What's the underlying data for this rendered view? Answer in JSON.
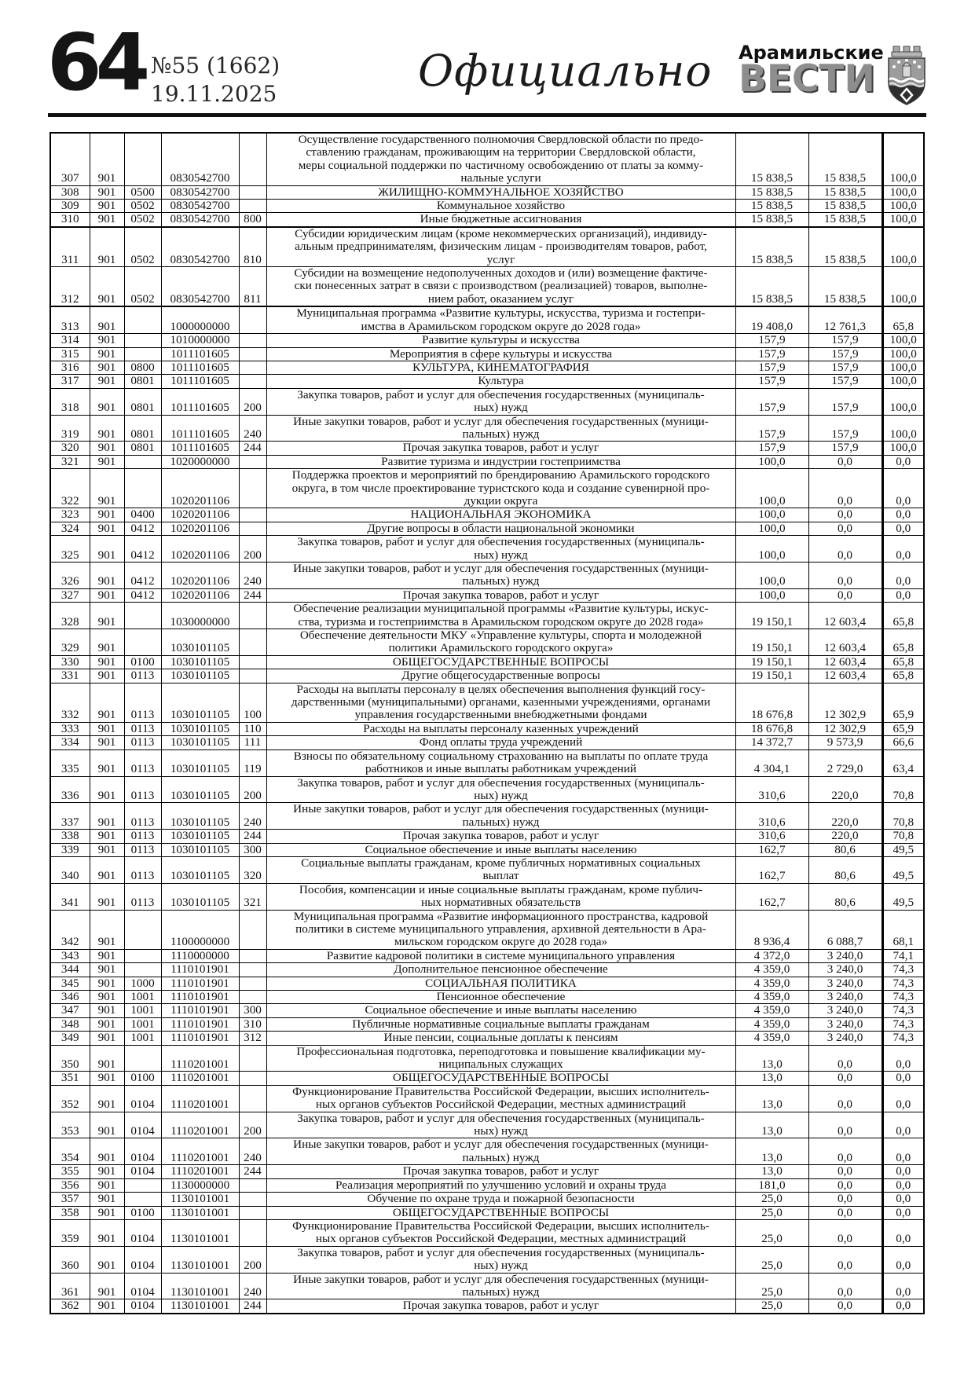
{
  "header": {
    "page_number": "64",
    "issue": "№55 (1662)",
    "date": "19.11.2025",
    "section_title": "Официально",
    "brand_top": "Арамильские",
    "brand_bottom": "ВЕСТИ",
    "crest_icon": "aramil-coat-of-arms-icon"
  },
  "table": {
    "columns": [
      "row_number",
      "grbs_code",
      "section_code",
      "target_article",
      "expense_type",
      "name",
      "approved",
      "executed",
      "percent"
    ],
    "thick_after": [
      "310",
      "312"
    ],
    "rows": [
      [
        "307",
        "901",
        "",
        "0830542700",
        "",
        "Осуществление государственного полномочия Свердловской области по предо-\nставлению гражданам, проживающим на территории Свердловской области,\nмеры социальной поддержки по частичному освобождению от платы за комму-\nнальные услуги",
        "15 838,5",
        "15 838,5",
        "100,0"
      ],
      [
        "308",
        "901",
        "0500",
        "0830542700",
        "",
        "ЖИЛИЩНО-КОММУНАЛЬНОЕ ХОЗЯЙСТВО",
        "15 838,5",
        "15 838,5",
        "100,0"
      ],
      [
        "309",
        "901",
        "0502",
        "0830542700",
        "",
        "Коммунальное хозяйство",
        "15 838,5",
        "15 838,5",
        "100,0"
      ],
      [
        "310",
        "901",
        "0502",
        "0830542700",
        "800",
        "Иные бюджетные ассигнования",
        "15 838,5",
        "15 838,5",
        "100,0"
      ],
      [
        "311",
        "901",
        "0502",
        "0830542700",
        "810",
        "Субсидии юридическим лицам (кроме некоммерческих организаций), индивиду-\nальным предпринимателям, физическим лицам - производителям товаров, работ,\nуслуг",
        "15 838,5",
        "15 838,5",
        "100,0"
      ],
      [
        "312",
        "901",
        "0502",
        "0830542700",
        "811",
        "Субсидии на возмещение недополученных доходов и (или) возмещение фактиче-\nски понесенных затрат в связи с производством (реализацией) товаров, выполне-\nнием работ, оказанием услуг",
        "15 838,5",
        "15 838,5",
        "100,0"
      ],
      [
        "313",
        "901",
        "",
        "1000000000",
        "",
        "Муниципальная программа «Развитие культуры, искусства, туризма и гостепри-\nимства в Арамильском городском округе до 2028 года»",
        "19 408,0",
        "12 761,3",
        "65,8"
      ],
      [
        "314",
        "901",
        "",
        "1010000000",
        "",
        "Развитие культуры и искусства",
        "157,9",
        "157,9",
        "100,0"
      ],
      [
        "315",
        "901",
        "",
        "1011101605",
        "",
        "Мероприятия в сфере культуры и искусства",
        "157,9",
        "157,9",
        "100,0"
      ],
      [
        "316",
        "901",
        "0800",
        "1011101605",
        "",
        "КУЛЬТУРА, КИНЕМАТОГРАФИЯ",
        "157,9",
        "157,9",
        "100,0"
      ],
      [
        "317",
        "901",
        "0801",
        "1011101605",
        "",
        "Культура",
        "157,9",
        "157,9",
        "100,0"
      ],
      [
        "318",
        "901",
        "0801",
        "1011101605",
        "200",
        "Закупка товаров, работ и услуг для обеспечения государственных (муниципаль-\nных) нужд",
        "157,9",
        "157,9",
        "100,0"
      ],
      [
        "319",
        "901",
        "0801",
        "1011101605",
        "240",
        "Иные закупки товаров, работ и услуг для обеспечения государственных (муници-\nпальных) нужд",
        "157,9",
        "157,9",
        "100,0"
      ],
      [
        "320",
        "901",
        "0801",
        "1011101605",
        "244",
        "Прочая закупка товаров, работ и услуг",
        "157,9",
        "157,9",
        "100,0"
      ],
      [
        "321",
        "901",
        "",
        "1020000000",
        "",
        "Развитие туризма и индустрии гостеприимства",
        "100,0",
        "0,0",
        "0,0"
      ],
      [
        "322",
        "901",
        "",
        "1020201106",
        "",
        "Поддержка проектов и мероприятий по брендированию Арамильского городского\nокруга, в том числе проектирование туристского кода и создание сувенирной про-\nдукции округа",
        "100,0",
        "0,0",
        "0,0"
      ],
      [
        "323",
        "901",
        "0400",
        "1020201106",
        "",
        "НАЦИОНАЛЬНАЯ ЭКОНОМИКА",
        "100,0",
        "0,0",
        "0,0"
      ],
      [
        "324",
        "901",
        "0412",
        "1020201106",
        "",
        "Другие вопросы в области национальной экономики",
        "100,0",
        "0,0",
        "0,0"
      ],
      [
        "325",
        "901",
        "0412",
        "1020201106",
        "200",
        "Закупка товаров, работ и услуг для обеспечения государственных (муниципаль-\nных) нужд",
        "100,0",
        "0,0",
        "0,0"
      ],
      [
        "326",
        "901",
        "0412",
        "1020201106",
        "240",
        "Иные закупки товаров, работ и услуг для обеспечения государственных (муници-\nпальных) нужд",
        "100,0",
        "0,0",
        "0,0"
      ],
      [
        "327",
        "901",
        "0412",
        "1020201106",
        "244",
        "Прочая закупка товаров, работ и услуг",
        "100,0",
        "0,0",
        "0,0"
      ],
      [
        "328",
        "901",
        "",
        "1030000000",
        "",
        "Обеспечение реализации муниципальной программы «Развитие культуры, искус-\nства, туризма и гостеприимства в Арамильском городском округе до 2028 года»",
        "19 150,1",
        "12 603,4",
        "65,8"
      ],
      [
        "329",
        "901",
        "",
        "1030101105",
        "",
        "Обеспечение деятельности МКУ «Управление культуры, спорта и молодежной\nполитики Арамильского городского округа»",
        "19 150,1",
        "12 603,4",
        "65,8"
      ],
      [
        "330",
        "901",
        "0100",
        "1030101105",
        "",
        "ОБЩЕГОСУДАРСТВЕННЫЕ ВОПРОСЫ",
        "19 150,1",
        "12 603,4",
        "65,8"
      ],
      [
        "331",
        "901",
        "0113",
        "1030101105",
        "",
        "Другие общегосударственные вопросы",
        "19 150,1",
        "12 603,4",
        "65,8"
      ],
      [
        "332",
        "901",
        "0113",
        "1030101105",
        "100",
        "Расходы на выплаты персоналу в целях обеспечения выполнения функций госу-\nдарственными (муниципальными) органами, казенными учреждениями, органами\nуправления государственными внебюджетными фондами",
        "18 676,8",
        "12 302,9",
        "65,9"
      ],
      [
        "333",
        "901",
        "0113",
        "1030101105",
        "110",
        "Расходы на выплаты персоналу казенных учреждений",
        "18 676,8",
        "12 302,9",
        "65,9"
      ],
      [
        "334",
        "901",
        "0113",
        "1030101105",
        "111",
        "Фонд оплаты труда учреждений",
        "14 372,7",
        "9 573,9",
        "66,6"
      ],
      [
        "335",
        "901",
        "0113",
        "1030101105",
        "119",
        "Взносы по обязательному социальному страхованию на выплаты по оплате труда\nработников и иные выплаты работникам учреждений",
        "4 304,1",
        "2 729,0",
        "63,4"
      ],
      [
        "336",
        "901",
        "0113",
        "1030101105",
        "200",
        "Закупка товаров, работ и услуг для обеспечения государственных (муниципаль-\nных) нужд",
        "310,6",
        "220,0",
        "70,8"
      ],
      [
        "337",
        "901",
        "0113",
        "1030101105",
        "240",
        "Иные закупки товаров, работ и услуг для обеспечения государственных (муници-\nпальных) нужд",
        "310,6",
        "220,0",
        "70,8"
      ],
      [
        "338",
        "901",
        "0113",
        "1030101105",
        "244",
        "Прочая закупка товаров, работ и услуг",
        "310,6",
        "220,0",
        "70,8"
      ],
      [
        "339",
        "901",
        "0113",
        "1030101105",
        "300",
        "Социальное обеспечение и иные выплаты населению",
        "162,7",
        "80,6",
        "49,5"
      ],
      [
        "340",
        "901",
        "0113",
        "1030101105",
        "320",
        "Социальные выплаты гражданам, кроме публичных нормативных социальных\nвыплат",
        "162,7",
        "80,6",
        "49,5"
      ],
      [
        "341",
        "901",
        "0113",
        "1030101105",
        "321",
        "Пособия, компенсации и иные социальные выплаты гражданам, кроме публич-\nных нормативных обязательств",
        "162,7",
        "80,6",
        "49,5"
      ],
      [
        "342",
        "901",
        "",
        "1100000000",
        "",
        "Муниципальная программа «Развитие информационного пространства, кадровой\nполитики в системе муниципального управления, архивной деятельности в Ара-\nмильском городском округе до 2028 года»",
        "8 936,4",
        "6 088,7",
        "68,1"
      ],
      [
        "343",
        "901",
        "",
        "1110000000",
        "",
        "Развитие кадровой политики в системе муниципального управления",
        "4 372,0",
        "3 240,0",
        "74,1"
      ],
      [
        "344",
        "901",
        "",
        "1110101901",
        "",
        "Дополнительное пенсионное обеспечение",
        "4 359,0",
        "3 240,0",
        "74,3"
      ],
      [
        "345",
        "901",
        "1000",
        "1110101901",
        "",
        "СОЦИАЛЬНАЯ ПОЛИТИКА",
        "4 359,0",
        "3 240,0",
        "74,3"
      ],
      [
        "346",
        "901",
        "1001",
        "1110101901",
        "",
        "Пенсионное обеспечение",
        "4 359,0",
        "3 240,0",
        "74,3"
      ],
      [
        "347",
        "901",
        "1001",
        "1110101901",
        "300",
        "Социальное обеспечение и иные выплаты населению",
        "4 359,0",
        "3 240,0",
        "74,3"
      ],
      [
        "348",
        "901",
        "1001",
        "1110101901",
        "310",
        "Публичные нормативные социальные выплаты гражданам",
        "4 359,0",
        "3 240,0",
        "74,3"
      ],
      [
        "349",
        "901",
        "1001",
        "1110101901",
        "312",
        "Иные пенсии, социальные доплаты к пенсиям",
        "4 359,0",
        "3 240,0",
        "74,3"
      ],
      [
        "350",
        "901",
        "",
        "1110201001",
        "",
        "Профессиональная подготовка, переподготовка и повышение квалификации му-\nниципальных служащих",
        "13,0",
        "0,0",
        "0,0"
      ],
      [
        "351",
        "901",
        "0100",
        "1110201001",
        "",
        "ОБЩЕГОСУДАРСТВЕННЫЕ ВОПРОСЫ",
        "13,0",
        "0,0",
        "0,0"
      ],
      [
        "352",
        "901",
        "0104",
        "1110201001",
        "",
        "Функционирование Правительства Российской Федерации, высших исполнитель-\nных органов субъектов Российской Федерации, местных администраций",
        "13,0",
        "0,0",
        "0,0"
      ],
      [
        "353",
        "901",
        "0104",
        "1110201001",
        "200",
        "Закупка товаров, работ и услуг для обеспечения государственных (муниципаль-\nных) нужд",
        "13,0",
        "0,0",
        "0,0"
      ],
      [
        "354",
        "901",
        "0104",
        "1110201001",
        "240",
        "Иные закупки товаров, работ и услуг для обеспечения государственных (муници-\nпальных) нужд",
        "13,0",
        "0,0",
        "0,0"
      ],
      [
        "355",
        "901",
        "0104",
        "1110201001",
        "244",
        "Прочая закупка товаров, работ и услуг",
        "13,0",
        "0,0",
        "0,0"
      ],
      [
        "356",
        "901",
        "",
        "1130000000",
        "",
        "Реализация мероприятий по улучшению условий и охраны труда",
        "181,0",
        "0,0",
        "0,0"
      ],
      [
        "357",
        "901",
        "",
        "1130101001",
        "",
        "Обучение по охране труда и пожарной безопасности",
        "25,0",
        "0,0",
        "0,0"
      ],
      [
        "358",
        "901",
        "0100",
        "1130101001",
        "",
        "ОБЩЕГОСУДАРСТВЕННЫЕ ВОПРОСЫ",
        "25,0",
        "0,0",
        "0,0"
      ],
      [
        "359",
        "901",
        "0104",
        "1130101001",
        "",
        "Функционирование Правительства Российской Федерации, высших исполнитель-\nных органов субъектов Российской Федерации, местных администраций",
        "25,0",
        "0,0",
        "0,0"
      ],
      [
        "360",
        "901",
        "0104",
        "1130101001",
        "200",
        "Закупка товаров, работ и услуг для обеспечения государственных (муниципаль-\nных) нужд",
        "25,0",
        "0,0",
        "0,0"
      ],
      [
        "361",
        "901",
        "0104",
        "1130101001",
        "240",
        "Иные закупки товаров, работ и услуг для обеспечения государственных (муници-\nпальных) нужд",
        "25,0",
        "0,0",
        "0,0"
      ],
      [
        "362",
        "901",
        "0104",
        "1130101001",
        "244",
        "Прочая закупка товаров, работ и услуг",
        "25,0",
        "0,0",
        "0,0"
      ]
    ]
  },
  "colors": {
    "ink": "#111111",
    "brand_gray": "#8d8d8d",
    "rule_black": "#111111"
  }
}
